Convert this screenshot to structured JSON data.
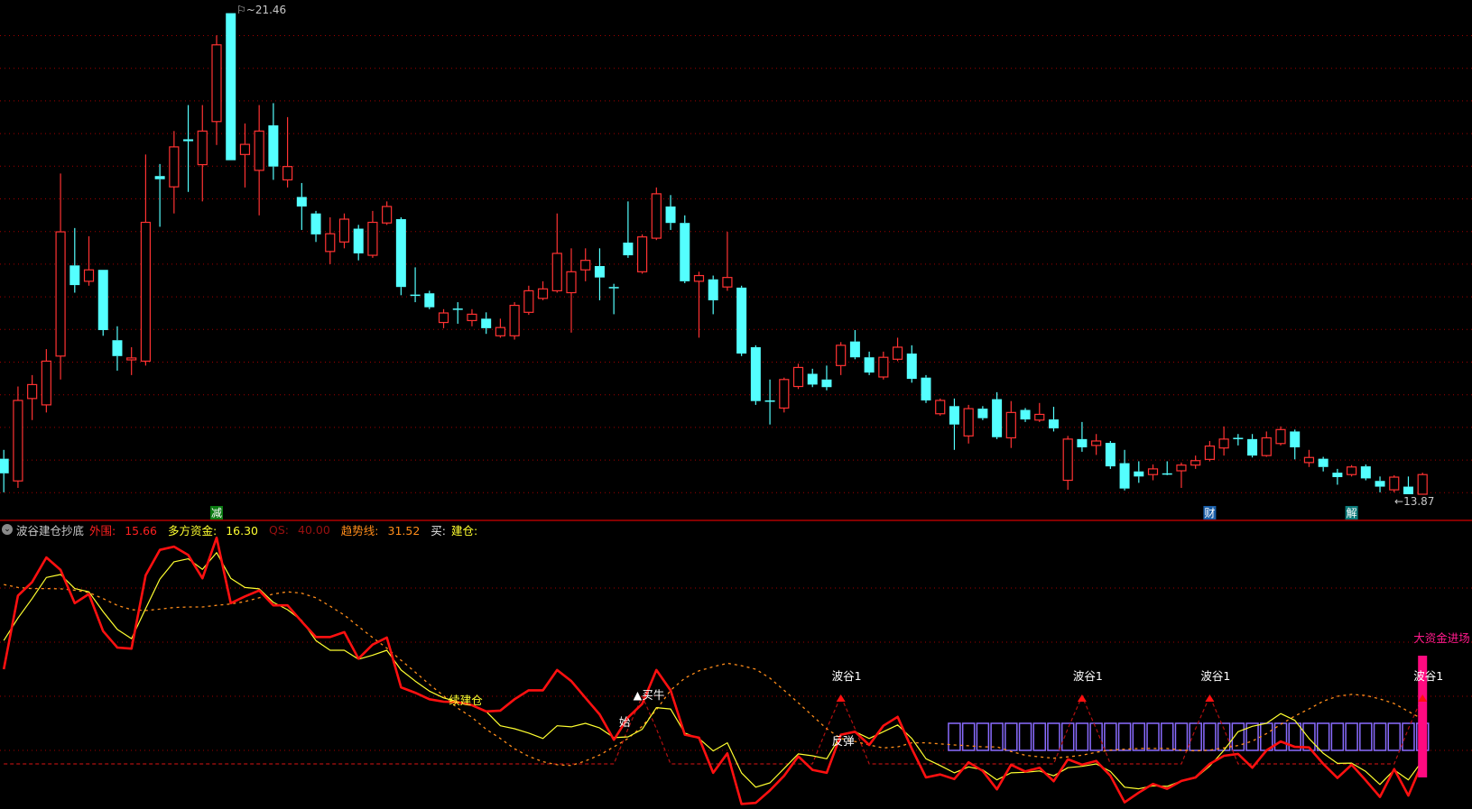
{
  "indicator_header": {
    "name": "波谷建仓抄底",
    "items": [
      {
        "label": "外围:",
        "value": "15.66",
        "color": "#ff2020"
      },
      {
        "label": "多方资金:",
        "value": "16.30",
        "color": "#ffff30"
      },
      {
        "label": "QS:",
        "value": "40.00",
        "color": "#9a1010"
      },
      {
        "label": "趋势线:",
        "value": "31.52",
        "color": "#ff8c1a"
      }
    ],
    "buy_label": "买:",
    "build_label": "建仓:"
  },
  "chart_data": [
    {
      "type": "candlestick",
      "up_color": "#ff3232",
      "down_color": "#54ffff",
      "grid": true,
      "max_label": "21.46",
      "min_label": "13.87",
      "ylim": [
        13.87,
        21.46
      ],
      "ohlc": [
        [
          14.43,
          14.57,
          13.9,
          14.2
        ],
        [
          14.08,
          15.57,
          13.97,
          15.35
        ],
        [
          15.38,
          15.75,
          15.04,
          15.6
        ],
        [
          15.28,
          16.16,
          15.16,
          15.97
        ],
        [
          16.05,
          18.93,
          15.68,
          18.01
        ],
        [
          17.48,
          18.07,
          17.05,
          17.17
        ],
        [
          17.23,
          17.94,
          17.16,
          17.41
        ],
        [
          17.41,
          17.41,
          16.37,
          16.46
        ],
        [
          16.3,
          16.52,
          15.82,
          16.05
        ],
        [
          15.99,
          16.19,
          15.75,
          16.02
        ],
        [
          15.97,
          19.23,
          15.9,
          18.16
        ],
        [
          18.89,
          19.08,
          18.09,
          18.84
        ],
        [
          18.72,
          19.6,
          18.3,
          19.35
        ],
        [
          19.47,
          20.01,
          18.64,
          19.44
        ],
        [
          19.07,
          20.01,
          18.49,
          19.6
        ],
        [
          19.75,
          21.11,
          19.38,
          20.96
        ],
        [
          21.46,
          21.46,
          19.14,
          19.14
        ],
        [
          19.23,
          19.72,
          18.71,
          19.39
        ],
        [
          18.98,
          20.01,
          18.27,
          19.6
        ],
        [
          19.69,
          20.04,
          18.83,
          19.04
        ],
        [
          18.83,
          19.82,
          18.71,
          19.04
        ],
        [
          18.56,
          18.78,
          18.04,
          18.41
        ],
        [
          18.3,
          18.34,
          17.85,
          17.97
        ],
        [
          17.7,
          18.24,
          17.5,
          17.98
        ],
        [
          17.85,
          18.3,
          17.75,
          18.21
        ],
        [
          18.06,
          18.12,
          17.56,
          17.67
        ],
        [
          17.64,
          18.34,
          17.6,
          18.16
        ],
        [
          18.15,
          18.49,
          18.12,
          18.41
        ],
        [
          18.21,
          18.24,
          17.01,
          17.14
        ],
        [
          17.02,
          17.45,
          16.9,
          17.01
        ],
        [
          17.04,
          17.08,
          16.79,
          16.82
        ],
        [
          16.58,
          16.79,
          16.49,
          16.73
        ],
        [
          16.8,
          16.9,
          16.56,
          16.79
        ],
        [
          16.61,
          16.79,
          16.52,
          16.71
        ],
        [
          16.64,
          16.74,
          16.4,
          16.49
        ],
        [
          16.37,
          16.64,
          16.34,
          16.5
        ],
        [
          16.37,
          16.9,
          16.31,
          16.85
        ],
        [
          16.74,
          17.16,
          16.7,
          17.08
        ],
        [
          16.96,
          17.23,
          16.93,
          17.11
        ],
        [
          17.08,
          18.3,
          17.05,
          17.67
        ],
        [
          17.05,
          17.75,
          16.42,
          17.38
        ],
        [
          17.41,
          17.75,
          17.23,
          17.56
        ],
        [
          17.47,
          17.75,
          16.93,
          17.29
        ],
        [
          17.14,
          17.19,
          16.71,
          17.12
        ],
        [
          17.84,
          18.49,
          17.6,
          17.64
        ],
        [
          17.38,
          17.97,
          17.35,
          17.93
        ],
        [
          17.91,
          18.71,
          17.88,
          18.61
        ],
        [
          18.41,
          18.59,
          18.04,
          18.15
        ],
        [
          18.15,
          18.27,
          17.2,
          17.23
        ],
        [
          17.23,
          17.38,
          16.34,
          17.32
        ],
        [
          17.26,
          17.32,
          16.71,
          16.93
        ],
        [
          17.14,
          18.01,
          17.08,
          17.29
        ],
        [
          17.13,
          17.16,
          16.05,
          16.09
        ],
        [
          16.19,
          16.22,
          15.28,
          15.34
        ],
        [
          15.35,
          15.68,
          14.97,
          15.34
        ],
        [
          15.23,
          15.71,
          15.16,
          15.68
        ],
        [
          15.57,
          15.93,
          15.53,
          15.87
        ],
        [
          15.77,
          15.85,
          15.56,
          15.6
        ],
        [
          15.68,
          15.9,
          15.51,
          15.56
        ],
        [
          15.9,
          16.27,
          15.75,
          16.22
        ],
        [
          16.28,
          16.46,
          16.0,
          16.03
        ],
        [
          16.03,
          16.12,
          15.75,
          15.79
        ],
        [
          15.72,
          16.12,
          15.68,
          16.03
        ],
        [
          16.0,
          16.34,
          15.97,
          16.19
        ],
        [
          16.09,
          16.22,
          15.63,
          15.69
        ],
        [
          15.71,
          15.75,
          15.31,
          15.35
        ],
        [
          15.14,
          15.38,
          15.11,
          15.35
        ],
        [
          15.26,
          15.38,
          14.57,
          14.97
        ],
        [
          14.79,
          15.28,
          14.67,
          15.22
        ],
        [
          15.22,
          15.26,
          15.04,
          15.07
        ],
        [
          15.37,
          15.48,
          14.74,
          14.77
        ],
        [
          14.76,
          15.34,
          14.6,
          15.16
        ],
        [
          15.2,
          15.23,
          15.01,
          15.05
        ],
        [
          15.04,
          15.31,
          15.01,
          15.13
        ],
        [
          15.05,
          15.25,
          14.86,
          14.91
        ],
        [
          14.09,
          14.79,
          13.94,
          14.74
        ],
        [
          14.74,
          15.01,
          14.54,
          14.61
        ],
        [
          14.64,
          14.82,
          14.49,
          14.71
        ],
        [
          14.68,
          14.71,
          14.27,
          14.31
        ],
        [
          14.36,
          14.57,
          13.93,
          13.96
        ],
        [
          14.23,
          14.39,
          14.05,
          14.15
        ],
        [
          14.18,
          14.34,
          14.09,
          14.27
        ],
        [
          14.2,
          14.39,
          14.17,
          14.19
        ],
        [
          14.24,
          14.37,
          13.97,
          14.33
        ],
        [
          14.33,
          14.48,
          14.27,
          14.4
        ],
        [
          14.42,
          14.71,
          14.39,
          14.63
        ],
        [
          14.6,
          14.94,
          14.48,
          14.74
        ],
        [
          14.76,
          14.82,
          14.64,
          14.75
        ],
        [
          14.74,
          14.82,
          14.45,
          14.48
        ],
        [
          14.48,
          14.86,
          14.46,
          14.76
        ],
        [
          14.67,
          14.94,
          14.64,
          14.89
        ],
        [
          14.86,
          14.89,
          14.42,
          14.61
        ],
        [
          14.37,
          14.57,
          14.3,
          14.45
        ],
        [
          14.43,
          14.46,
          14.23,
          14.3
        ],
        [
          14.21,
          14.27,
          14.02,
          14.14
        ],
        [
          14.18,
          14.33,
          14.15,
          14.3
        ],
        [
          14.31,
          14.34,
          14.09,
          14.12
        ],
        [
          14.08,
          14.15,
          13.9,
          13.99
        ],
        [
          13.94,
          14.17,
          13.9,
          14.14
        ],
        [
          13.99,
          14.15,
          13.87,
          13.87
        ],
        [
          13.87,
          14.21,
          13.87,
          14.18
        ]
      ],
      "markers": [
        {
          "index": 15,
          "text": "减",
          "color": "#0b7a12"
        },
        {
          "index": 85,
          "text": "财",
          "color": "#1a5ea8"
        },
        {
          "index": 95,
          "text": "解",
          "color": "#0b7a7a"
        }
      ]
    },
    {
      "type": "line",
      "grid": true,
      "ylim": [
        0,
        100
      ],
      "gridlines": [
        20,
        40,
        60,
        80
      ],
      "baseline": 15,
      "series": [
        {
          "name": "外围",
          "color": "#ff1010",
          "style": "solid-thick",
          "values": [
            50,
            77.2,
            82.2,
            91.3,
            86.7,
            74.4,
            77.8,
            64.1,
            58,
            57.6,
            84.7,
            94.1,
            95.3,
            92.2,
            83.6,
            98.6,
            74.4,
            76.9,
            79.1,
            73.6,
            73.6,
            67.6,
            61.9,
            61.9,
            63.7,
            53.9,
            59.1,
            61.7,
            43.3,
            41.3,
            38.9,
            38,
            37.8,
            36.7,
            34.4,
            34.7,
            38.9,
            42.2,
            42.2,
            49.7,
            45.6,
            39.4,
            33.3,
            23.9,
            32.2,
            37.2,
            49.7,
            42.2,
            25.8,
            24.7,
            11.7,
            18.9,
            0.2,
            0.6,
            5.2,
            10.6,
            17.8,
            12.8,
            11.7,
            25.8,
            26.9,
            22,
            29.1,
            32.4,
            20.6,
            10,
            11.1,
            9.4,
            15.6,
            12.4,
            5.6,
            14.7,
            12.2,
            13.6,
            8.6,
            16.7,
            14.7,
            16.1,
            10.6,
            0.8,
            4.4,
            7.6,
            5.8,
            8.7,
            10,
            15,
            18,
            18.7,
            13.6,
            20,
            23.3,
            21.3,
            21.1,
            15,
            9.8,
            14.7,
            8.9,
            2.8,
            13.1,
            3.3,
            15.66
          ]
        },
        {
          "name": "多方资金",
          "color": "#ffff30",
          "style": "solid",
          "values": [
            60.6,
            68.9,
            76.1,
            83.9,
            85,
            79.8,
            78.6,
            71.3,
            64.7,
            61.3,
            72.4,
            83.3,
            89.7,
            90.8,
            86.9,
            93.1,
            83.6,
            80.2,
            79.7,
            74.7,
            72,
            68,
            60.6,
            57,
            57,
            53.7,
            55.2,
            57,
            49.7,
            45.6,
            41.9,
            39.4,
            38,
            36.9,
            34.4,
            29.1,
            28,
            26.4,
            24.4,
            29.1,
            28.7,
            30,
            28.3,
            24.7,
            25,
            27.8,
            35.8,
            35.3,
            26.4,
            24.4,
            19.8,
            22.8,
            11.7,
            6.4,
            8,
            13.3,
            18.7,
            18,
            16.9,
            25.6,
            26.9,
            24.4,
            26.9,
            29.4,
            24.4,
            16.9,
            14.4,
            11.7,
            13.9,
            12.8,
            9.1,
            11.7,
            11.9,
            12.4,
            10.6,
            13.6,
            14.1,
            15,
            12.2,
            6.4,
            5.8,
            6.9,
            6.7,
            8.7,
            9.8,
            14.2,
            20,
            26.9,
            28.9,
            30,
            33.6,
            31.1,
            24.4,
            18.9,
            15.2,
            15.3,
            12.2,
            7.4,
            12.8,
            9.1,
            16.3
          ]
        },
        {
          "name": "QS",
          "color": "#b01010",
          "style": "dashed",
          "values": [
            15,
            15,
            15,
            15,
            15,
            15,
            15,
            15,
            15,
            15,
            15,
            15,
            15,
            15,
            15,
            15,
            15,
            15,
            15,
            15,
            15,
            15,
            15,
            15,
            15,
            15,
            15,
            15,
            15,
            15,
            15,
            15,
            15,
            15,
            15,
            15,
            15,
            15,
            15,
            15,
            15,
            15,
            15,
            15,
            28,
            40,
            28,
            15,
            15,
            15,
            15,
            15,
            15,
            15,
            15,
            15,
            15,
            15,
            28,
            40,
            28,
            15,
            15,
            15,
            15,
            15,
            15,
            15,
            15,
            15,
            15,
            15,
            15,
            15,
            15,
            28,
            40,
            28,
            15,
            15,
            15,
            15,
            15,
            15,
            28,
            40,
            28,
            15,
            15,
            15,
            15,
            15,
            15,
            15,
            15,
            15,
            15,
            15,
            15,
            28,
            40
          ]
        },
        {
          "name": "趋势线",
          "color": "#ff8c1a",
          "style": "dotted",
          "values": [
            81.3,
            80.2,
            79.8,
            79.8,
            79.7,
            79.2,
            78.3,
            76.1,
            73.6,
            72,
            71.7,
            72.2,
            72.8,
            73,
            73,
            73.6,
            74.1,
            75,
            76.4,
            77.8,
            78.6,
            78.1,
            76.4,
            73.3,
            70,
            65.8,
            61.7,
            57.8,
            53.3,
            48.9,
            44.4,
            40.2,
            35.6,
            32.2,
            27.8,
            24.4,
            20.6,
            17.8,
            15.8,
            14.7,
            14.4,
            16.1,
            18.3,
            21.3,
            24.4,
            28.9,
            35,
            42.2,
            46.7,
            49.4,
            50.9,
            52.2,
            51.3,
            50,
            46.7,
            42.2,
            37.6,
            32.8,
            28,
            24.4,
            23.3,
            22,
            20.9,
            21.3,
            22.8,
            22.8,
            22.4,
            22,
            21.7,
            21.3,
            21.3,
            19.6,
            18.2,
            17.6,
            17.1,
            17.6,
            18.2,
            19.3,
            20.1,
            20.4,
            20.7,
            20.7,
            20.7,
            20.1,
            19.8,
            20.1,
            20.9,
            21.8,
            23.4,
            26.2,
            29.6,
            32.7,
            35.3,
            38.2,
            40,
            40.7,
            40.3,
            39,
            37.3,
            34.4,
            31.52
          ]
        }
      ],
      "box_signal": {
        "from_index": 67,
        "to_index": 100,
        "low": 20,
        "high": 30,
        "color": "#8a6cff"
      },
      "big_money_bar": {
        "index": 100,
        "low": 10,
        "high": 55,
        "color": "#ff0a80"
      },
      "annotations": [
        {
          "index": 32,
          "level": 37,
          "text": "续建仓",
          "color": "#ffff30"
        },
        {
          "index": 45,
          "level": 39,
          "text": "▲买牛",
          "color": "#ffffff"
        },
        {
          "index": 44,
          "level": 29,
          "text": "始",
          "color": "#ffffff"
        },
        {
          "index": 59,
          "level": 46,
          "text": "波谷1",
          "color": "#ffffff",
          "arrow": true
        },
        {
          "index": 59,
          "level": 22,
          "text": "反弹",
          "color": "#ffffff"
        },
        {
          "index": 76,
          "level": 46,
          "text": "波谷1",
          "color": "#ffffff",
          "arrow": true
        },
        {
          "index": 85,
          "level": 46,
          "text": "波谷1",
          "color": "#ffffff",
          "arrow": true
        },
        {
          "index": 100,
          "level": 46,
          "text": "波谷1",
          "color": "#ffffff",
          "arrow": true
        },
        {
          "index": 100,
          "level": 60,
          "text": "大资金进场",
          "color": "#ff1a8c"
        }
      ]
    }
  ]
}
